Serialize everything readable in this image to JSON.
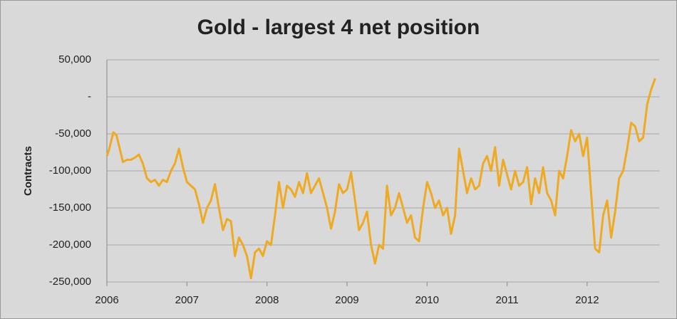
{
  "chart_data": {
    "type": "line",
    "title": "Gold - largest 4 net position",
    "y_label": "Contracts",
    "xlim": [
      2006,
      2012.9
    ],
    "xticks": [
      2006,
      2007,
      2008,
      2009,
      2010,
      2011,
      2012
    ],
    "ylim": [
      -250000,
      50000
    ],
    "yticks": [
      {
        "value": 50000,
        "label": "50,000"
      },
      {
        "value": 0,
        "label": "-"
      },
      {
        "value": -50000,
        "label": "-50,000"
      },
      {
        "value": -100000,
        "label": "-100,000"
      },
      {
        "value": -150000,
        "label": "-150,000"
      },
      {
        "value": -200000,
        "label": "-200,000"
      },
      {
        "value": -250000,
        "label": "-250,000"
      }
    ],
    "grid": true,
    "x": [
      2006.0,
      2006.03,
      2006.08,
      2006.12,
      2006.15,
      2006.2,
      2006.25,
      2006.3,
      2006.35,
      2006.4,
      2006.45,
      2006.5,
      2006.55,
      2006.6,
      2006.65,
      2006.7,
      2006.75,
      2006.8,
      2006.85,
      2006.9,
      2006.95,
      2007.0,
      2007.05,
      2007.1,
      2007.15,
      2007.2,
      2007.25,
      2007.3,
      2007.35,
      2007.4,
      2007.45,
      2007.5,
      2007.55,
      2007.6,
      2007.65,
      2007.7,
      2007.75,
      2007.8,
      2007.85,
      2007.9,
      2007.95,
      2008.0,
      2008.05,
      2008.1,
      2008.15,
      2008.2,
      2008.25,
      2008.3,
      2008.35,
      2008.4,
      2008.45,
      2008.5,
      2008.55,
      2008.6,
      2008.65,
      2008.7,
      2008.75,
      2008.8,
      2008.85,
      2008.9,
      2008.95,
      2009.0,
      2009.05,
      2009.1,
      2009.15,
      2009.2,
      2009.25,
      2009.3,
      2009.35,
      2009.4,
      2009.45,
      2009.5,
      2009.55,
      2009.6,
      2009.65,
      2009.7,
      2009.75,
      2009.8,
      2009.85,
      2009.9,
      2009.95,
      2010.0,
      2010.05,
      2010.1,
      2010.15,
      2010.2,
      2010.25,
      2010.3,
      2010.35,
      2010.4,
      2010.45,
      2010.5,
      2010.55,
      2010.6,
      2010.65,
      2010.7,
      2010.75,
      2010.8,
      2010.85,
      2010.9,
      2010.95,
      2011.0,
      2011.05,
      2011.1,
      2011.15,
      2011.2,
      2011.25,
      2011.3,
      2011.35,
      2011.4,
      2011.45,
      2011.5,
      2011.55,
      2011.6,
      2011.65,
      2011.7,
      2011.75,
      2011.8,
      2011.85,
      2011.9,
      2011.95,
      2012.0,
      2012.05,
      2012.1,
      2012.15,
      2012.2,
      2012.25,
      2012.3,
      2012.35,
      2012.4,
      2012.45,
      2012.5,
      2012.55,
      2012.6,
      2012.65,
      2012.7,
      2012.75,
      2012.8,
      2012.85
    ],
    "series": [
      {
        "color": "#eeaa22",
        "values": [
          -80000,
          -70000,
          -48000,
          -52000,
          -65000,
          -88000,
          -85000,
          -85000,
          -82000,
          -78000,
          -90000,
          -110000,
          -115000,
          -112000,
          -120000,
          -112000,
          -115000,
          -100000,
          -90000,
          -70000,
          -95000,
          -115000,
          -120000,
          -125000,
          -145000,
          -170000,
          -150000,
          -140000,
          -118000,
          -150000,
          -180000,
          -165000,
          -168000,
          -215000,
          -190000,
          -200000,
          -215000,
          -245000,
          -210000,
          -205000,
          -215000,
          -195000,
          -200000,
          -160000,
          -115000,
          -150000,
          -120000,
          -125000,
          -135000,
          -115000,
          -130000,
          -103000,
          -130000,
          -120000,
          -110000,
          -130000,
          -150000,
          -178000,
          -155000,
          -118000,
          -130000,
          -125000,
          -102000,
          -140000,
          -180000,
          -170000,
          -155000,
          -200000,
          -225000,
          -200000,
          -205000,
          -120000,
          -160000,
          -150000,
          -130000,
          -150000,
          -170000,
          -160000,
          -190000,
          -195000,
          -150000,
          -115000,
          -130000,
          -150000,
          -140000,
          -160000,
          -150000,
          -185000,
          -160000,
          -70000,
          -100000,
          -130000,
          -110000,
          -125000,
          -120000,
          -90000,
          -80000,
          -100000,
          -68000,
          -120000,
          -85000,
          -105000,
          -125000,
          -100000,
          -120000,
          -115000,
          -95000,
          -145000,
          -110000,
          -130000,
          -95000,
          -130000,
          -140000,
          -160000,
          -100000,
          -110000,
          -80000,
          -45000,
          -60000,
          -50000,
          -80000,
          -55000,
          -130000,
          -205000,
          -210000,
          -160000,
          -140000,
          -190000,
          -155000,
          -110000,
          -100000,
          -70000,
          -35000,
          -40000,
          -60000,
          -55000,
          -10000,
          10000,
          25000
        ]
      }
    ]
  }
}
